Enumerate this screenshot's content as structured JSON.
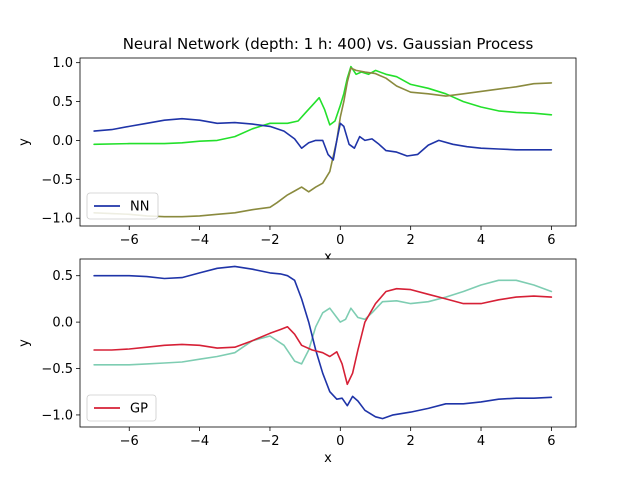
{
  "figure": {
    "title": "Neural Network (depth: 1 h: 400) vs. Gaussian Process"
  },
  "chart_data": [
    {
      "type": "line",
      "xlabel": "x",
      "ylabel": "y",
      "xlim": [
        -7.4,
        6.7
      ],
      "ylim": [
        -1.1,
        1.06
      ],
      "xticks": [
        -6,
        -4,
        -2,
        0,
        2,
        4,
        6
      ],
      "yticks": [
        -1.0,
        -0.5,
        0.0,
        0.5,
        1.0
      ],
      "xtick_labels": [
        "−6",
        "−4",
        "−2",
        "0",
        "2",
        "4",
        "6"
      ],
      "ytick_labels": [
        "−1.0",
        "−0.5",
        "0.0",
        "0.5",
        "1.0"
      ],
      "legend": {
        "placement": "lower-left",
        "entries": [
          "NN"
        ]
      },
      "series": [
        {
          "name": "NN",
          "color": "#1f34a8",
          "points": [
            [
              -7,
              0.12
            ],
            [
              -6.5,
              0.14
            ],
            [
              -6,
              0.18
            ],
            [
              -5.5,
              0.22
            ],
            [
              -5,
              0.26
            ],
            [
              -4.5,
              0.28
            ],
            [
              -4,
              0.26
            ],
            [
              -3.5,
              0.22
            ],
            [
              -3,
              0.23
            ],
            [
              -2.5,
              0.21
            ],
            [
              -2,
              0.18
            ],
            [
              -1.6,
              0.12
            ],
            [
              -1.3,
              0.02
            ],
            [
              -1.1,
              -0.1
            ],
            [
              -0.9,
              -0.03
            ],
            [
              -0.7,
              0.0
            ],
            [
              -0.5,
              0.0
            ],
            [
              -0.35,
              -0.18
            ],
            [
              -0.2,
              -0.25
            ],
            [
              -0.1,
              0.0
            ],
            [
              0,
              0.22
            ],
            [
              0.1,
              0.18
            ],
            [
              0.25,
              -0.05
            ],
            [
              0.4,
              -0.1
            ],
            [
              0.55,
              0.05
            ],
            [
              0.7,
              0.0
            ],
            [
              0.9,
              0.02
            ],
            [
              1.1,
              -0.05
            ],
            [
              1.3,
              -0.13
            ],
            [
              1.6,
              -0.15
            ],
            [
              1.9,
              -0.2
            ],
            [
              2.2,
              -0.18
            ],
            [
              2.5,
              -0.06
            ],
            [
              2.8,
              0.0
            ],
            [
              3.2,
              -0.05
            ],
            [
              3.6,
              -0.08
            ],
            [
              4,
              -0.1
            ],
            [
              4.5,
              -0.11
            ],
            [
              5,
              -0.12
            ],
            [
              5.5,
              -0.12
            ],
            [
              6,
              -0.12
            ]
          ]
        },
        {
          "color": "#23e02b",
          "points": [
            [
              -7,
              -0.05
            ],
            [
              -6,
              -0.04
            ],
            [
              -5,
              -0.04
            ],
            [
              -4.5,
              -0.03
            ],
            [
              -4,
              -0.01
            ],
            [
              -3.5,
              0.0
            ],
            [
              -3,
              0.05
            ],
            [
              -2.5,
              0.15
            ],
            [
              -2,
              0.22
            ],
            [
              -1.5,
              0.22
            ],
            [
              -1.2,
              0.25
            ],
            [
              -1,
              0.35
            ],
            [
              -0.8,
              0.45
            ],
            [
              -0.6,
              0.55
            ],
            [
              -0.45,
              0.4
            ],
            [
              -0.3,
              0.2
            ],
            [
              -0.15,
              0.25
            ],
            [
              0,
              0.45
            ],
            [
              0.1,
              0.6
            ],
            [
              0.2,
              0.8
            ],
            [
              0.3,
              0.95
            ],
            [
              0.45,
              0.85
            ],
            [
              0.6,
              0.88
            ],
            [
              0.8,
              0.85
            ],
            [
              1,
              0.9
            ],
            [
              1.3,
              0.85
            ],
            [
              1.6,
              0.82
            ],
            [
              2,
              0.72
            ],
            [
              2.5,
              0.67
            ],
            [
              3,
              0.6
            ],
            [
              3.5,
              0.5
            ],
            [
              4,
              0.43
            ],
            [
              4.5,
              0.38
            ],
            [
              5,
              0.36
            ],
            [
              5.5,
              0.35
            ],
            [
              6,
              0.33
            ]
          ]
        },
        {
          "color": "#8a8a3e",
          "points": [
            [
              -7,
              -0.93
            ],
            [
              -6.5,
              -0.94
            ],
            [
              -6,
              -0.95
            ],
            [
              -5.5,
              -0.97
            ],
            [
              -5,
              -0.98
            ],
            [
              -4.5,
              -0.98
            ],
            [
              -4,
              -0.97
            ],
            [
              -3.5,
              -0.95
            ],
            [
              -3,
              -0.93
            ],
            [
              -2.5,
              -0.89
            ],
            [
              -2,
              -0.86
            ],
            [
              -1.8,
              -0.8
            ],
            [
              -1.5,
              -0.7
            ],
            [
              -1.3,
              -0.65
            ],
            [
              -1.1,
              -0.6
            ],
            [
              -0.9,
              -0.66
            ],
            [
              -0.7,
              -0.6
            ],
            [
              -0.5,
              -0.55
            ],
            [
              -0.3,
              -0.4
            ],
            [
              -0.1,
              0.0
            ],
            [
              0,
              0.3
            ],
            [
              0.1,
              0.5
            ],
            [
              0.2,
              0.75
            ],
            [
              0.3,
              0.93
            ],
            [
              0.45,
              0.9
            ],
            [
              0.7,
              0.88
            ],
            [
              1,
              0.86
            ],
            [
              1.3,
              0.8
            ],
            [
              1.6,
              0.7
            ],
            [
              2,
              0.62
            ],
            [
              2.5,
              0.6
            ],
            [
              3,
              0.57
            ],
            [
              3.5,
              0.6
            ],
            [
              4,
              0.63
            ],
            [
              4.5,
              0.66
            ],
            [
              5,
              0.69
            ],
            [
              5.5,
              0.73
            ],
            [
              6,
              0.74
            ]
          ]
        }
      ]
    },
    {
      "type": "line",
      "xlabel": "x",
      "ylabel": "y",
      "xlim": [
        -7.4,
        6.7
      ],
      "ylim": [
        -1.13,
        0.68
      ],
      "xticks": [
        -6,
        -4,
        -2,
        0,
        2,
        4,
        6
      ],
      "yticks": [
        -1.0,
        -0.5,
        0.0,
        0.5
      ],
      "xtick_labels": [
        "−6",
        "−4",
        "−2",
        "0",
        "2",
        "4",
        "6"
      ],
      "ytick_labels": [
        "−1.0",
        "−0.5",
        "0.0",
        "0.5"
      ],
      "legend": {
        "placement": "lower-left",
        "entries": [
          "GP"
        ]
      },
      "series": [
        {
          "name": "GP",
          "color": "#d62036",
          "points": [
            [
              -7,
              -0.3
            ],
            [
              -6.5,
              -0.3
            ],
            [
              -6,
              -0.29
            ],
            [
              -5.5,
              -0.27
            ],
            [
              -5,
              -0.25
            ],
            [
              -4.5,
              -0.24
            ],
            [
              -4,
              -0.25
            ],
            [
              -3.5,
              -0.28
            ],
            [
              -3,
              -0.27
            ],
            [
              -2.5,
              -0.2
            ],
            [
              -2,
              -0.12
            ],
            [
              -1.7,
              -0.08
            ],
            [
              -1.5,
              -0.05
            ],
            [
              -1.3,
              -0.13
            ],
            [
              -1.1,
              -0.25
            ],
            [
              -0.8,
              -0.3
            ],
            [
              -0.5,
              -0.33
            ],
            [
              -0.3,
              -0.37
            ],
            [
              -0.1,
              -0.32
            ],
            [
              0.05,
              -0.45
            ],
            [
              0.2,
              -0.67
            ],
            [
              0.35,
              -0.55
            ],
            [
              0.5,
              -0.3
            ],
            [
              0.7,
              0.0
            ],
            [
              1,
              0.2
            ],
            [
              1.3,
              0.33
            ],
            [
              1.6,
              0.36
            ],
            [
              2,
              0.35
            ],
            [
              2.5,
              0.3
            ],
            [
              3,
              0.25
            ],
            [
              3.5,
              0.2
            ],
            [
              4,
              0.2
            ],
            [
              4.5,
              0.24
            ],
            [
              5,
              0.27
            ],
            [
              5.5,
              0.28
            ],
            [
              6,
              0.27
            ]
          ]
        },
        {
          "color": "#7ecdb2",
          "points": [
            [
              -7,
              -0.46
            ],
            [
              -6.5,
              -0.46
            ],
            [
              -6,
              -0.46
            ],
            [
              -5.5,
              -0.45
            ],
            [
              -5,
              -0.44
            ],
            [
              -4.5,
              -0.43
            ],
            [
              -4,
              -0.4
            ],
            [
              -3.5,
              -0.37
            ],
            [
              -3,
              -0.33
            ],
            [
              -2.5,
              -0.2
            ],
            [
              -2,
              -0.15
            ],
            [
              -1.6,
              -0.25
            ],
            [
              -1.3,
              -0.42
            ],
            [
              -1.1,
              -0.45
            ],
            [
              -0.9,
              -0.3
            ],
            [
              -0.7,
              -0.05
            ],
            [
              -0.5,
              0.1
            ],
            [
              -0.3,
              0.15
            ],
            [
              -0.1,
              0.05
            ],
            [
              0,
              0.0
            ],
            [
              0.15,
              0.03
            ],
            [
              0.3,
              0.15
            ],
            [
              0.5,
              0.05
            ],
            [
              0.7,
              0.03
            ],
            [
              0.9,
              0.1
            ],
            [
              1.2,
              0.22
            ],
            [
              1.6,
              0.23
            ],
            [
              2,
              0.2
            ],
            [
              2.5,
              0.22
            ],
            [
              3,
              0.27
            ],
            [
              3.5,
              0.33
            ],
            [
              4,
              0.4
            ],
            [
              4.5,
              0.45
            ],
            [
              5,
              0.45
            ],
            [
              5.5,
              0.4
            ],
            [
              6,
              0.33
            ]
          ]
        },
        {
          "color": "#1f34a8",
          "points": [
            [
              -7,
              0.5
            ],
            [
              -6.5,
              0.5
            ],
            [
              -6,
              0.5
            ],
            [
              -5.5,
              0.49
            ],
            [
              -5,
              0.47
            ],
            [
              -4.5,
              0.48
            ],
            [
              -4,
              0.53
            ],
            [
              -3.5,
              0.58
            ],
            [
              -3,
              0.6
            ],
            [
              -2.5,
              0.57
            ],
            [
              -2,
              0.53
            ],
            [
              -1.7,
              0.52
            ],
            [
              -1.5,
              0.5
            ],
            [
              -1.3,
              0.45
            ],
            [
              -1.1,
              0.25
            ],
            [
              -0.9,
              0.0
            ],
            [
              -0.7,
              -0.3
            ],
            [
              -0.5,
              -0.55
            ],
            [
              -0.3,
              -0.75
            ],
            [
              -0.1,
              -0.83
            ],
            [
              0.05,
              -0.82
            ],
            [
              0.2,
              -0.9
            ],
            [
              0.35,
              -0.8
            ],
            [
              0.5,
              -0.85
            ],
            [
              0.7,
              -0.95
            ],
            [
              1,
              -1.02
            ],
            [
              1.2,
              -1.04
            ],
            [
              1.5,
              -1.0
            ],
            [
              2,
              -0.97
            ],
            [
              2.5,
              -0.93
            ],
            [
              3,
              -0.88
            ],
            [
              3.5,
              -0.88
            ],
            [
              4,
              -0.86
            ],
            [
              4.5,
              -0.83
            ],
            [
              5,
              -0.82
            ],
            [
              5.5,
              -0.82
            ],
            [
              6,
              -0.81
            ]
          ]
        }
      ]
    }
  ]
}
